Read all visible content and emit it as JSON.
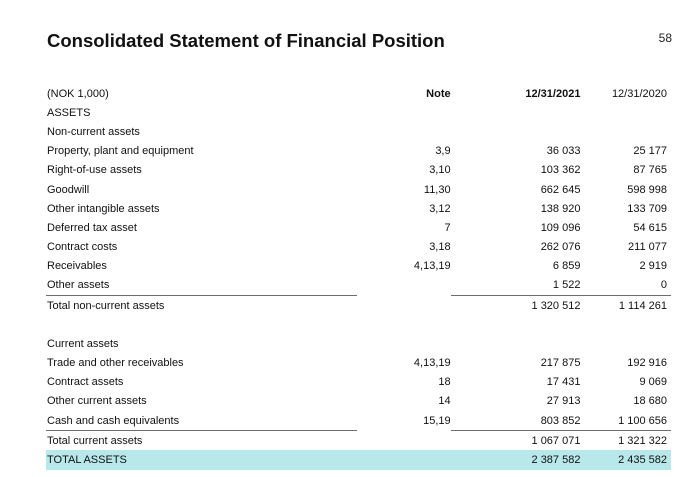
{
  "page": {
    "title": "Consolidated Statement of Financial Position",
    "page_number": "58"
  },
  "table": {
    "header": {
      "unit": "(NOK 1,000)",
      "note": "Note",
      "current": "12/31/2021",
      "previous": "12/31/2020"
    },
    "assets_heading": "ASSETS",
    "non_current": {
      "heading": "Non-current assets",
      "rows": [
        {
          "label": "Property, plant and equipment",
          "note": "3,9",
          "current": "36 033",
          "previous": "25 177"
        },
        {
          "label": "Right-of-use assets",
          "note": "3,10",
          "current": "103 362",
          "previous": "87 765"
        },
        {
          "label": "Goodwill",
          "note": "11,30",
          "current": "662 645",
          "previous": "598 998"
        },
        {
          "label": "Other intangible assets",
          "note": "3,12",
          "current": "138 920",
          "previous": "133 709"
        },
        {
          "label": "Deferred tax asset",
          "note": "7",
          "current": "109 096",
          "previous": "54 615"
        },
        {
          "label": "Contract costs",
          "note": "3,18",
          "current": "262 076",
          "previous": "211 077"
        },
        {
          "label": "Receivables",
          "note": "4,13,19",
          "current": "6 859",
          "previous": "2 919"
        },
        {
          "label": "Other assets",
          "note": "",
          "current": "1 522",
          "previous": "0"
        }
      ],
      "total": {
        "label": "Total non-current assets",
        "current": "1 320 512",
        "previous": "1 114 261"
      }
    },
    "current": {
      "heading": "Current assets",
      "rows": [
        {
          "label": "Trade and other receivables",
          "note": "4,13,19",
          "current": "217 875",
          "previous": "192 916"
        },
        {
          "label": "Contract assets",
          "note": "18",
          "current": "17 431",
          "previous": "9 069"
        },
        {
          "label": "Other current assets",
          "note": "14",
          "current": "27 913",
          "previous": "18 680"
        },
        {
          "label": "Cash and cash equivalents",
          "note": "15,19",
          "current": "803 852",
          "previous": "1 100 656"
        }
      ],
      "total": {
        "label": "Total current assets",
        "current": "1 067 071",
        "previous": "1 321 322"
      }
    },
    "grand_total": {
      "label": "TOTAL ASSETS",
      "current": "2 387 582",
      "previous": "2 435 582"
    }
  },
  "colors": {
    "highlight": "#b8e8ea",
    "rule": "#6d6d6d"
  }
}
